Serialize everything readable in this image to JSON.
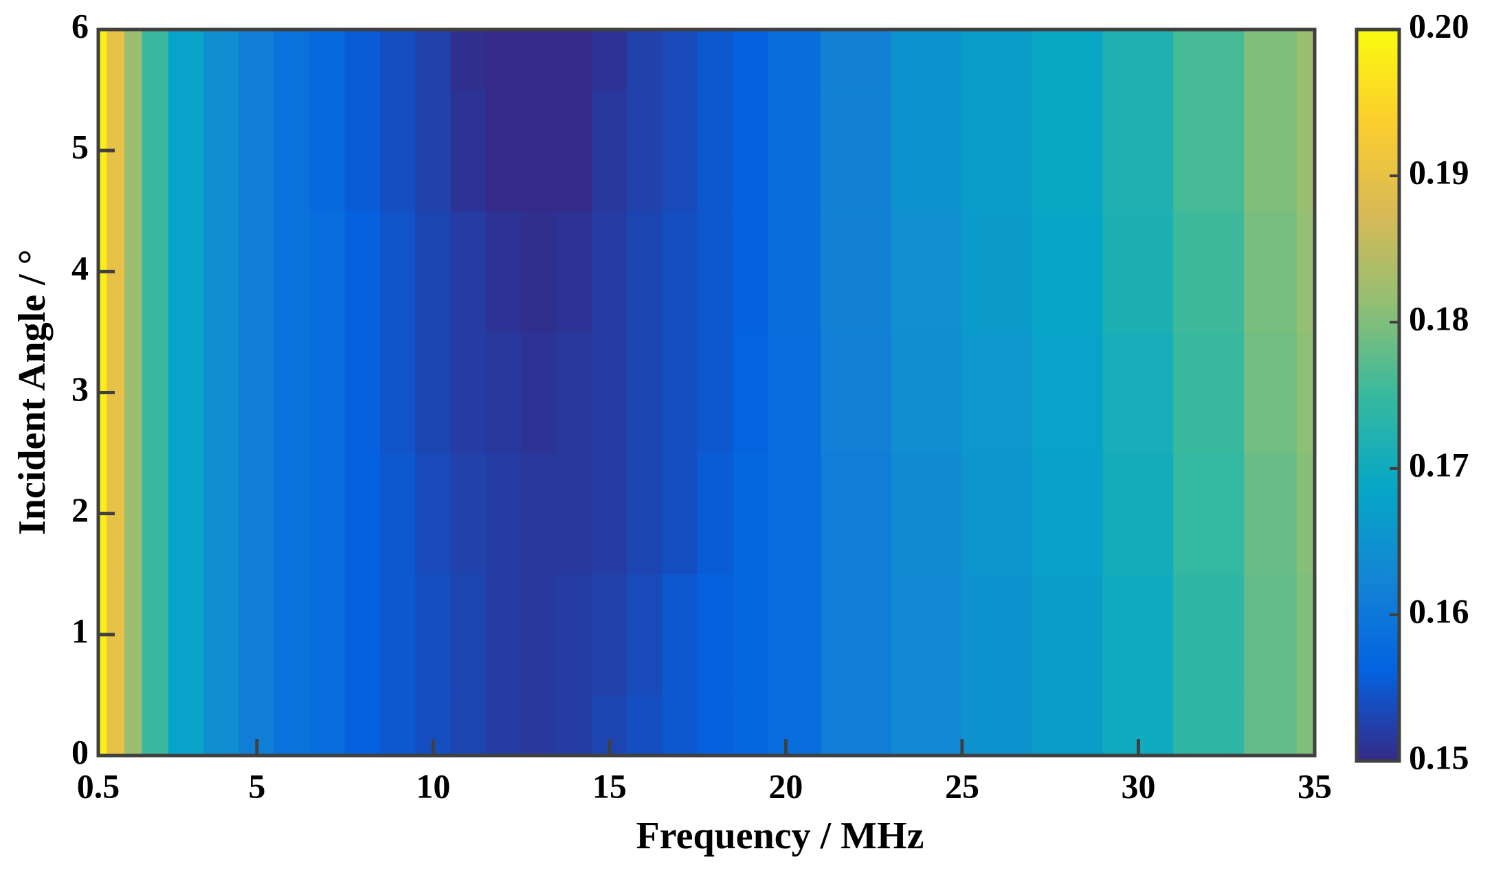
{
  "chart_data": {
    "type": "heatmap",
    "xlabel": "Frequency / MHz",
    "ylabel": "Incident Angle / °",
    "x": [
      0.5,
      1,
      1.5,
      2,
      3,
      4,
      5,
      6,
      7,
      8,
      9,
      10,
      11,
      12,
      13,
      14,
      15,
      16,
      17,
      18,
      19,
      20,
      22,
      24,
      26,
      28,
      30,
      32,
      34,
      35
    ],
    "y": [
      0,
      1,
      2,
      3,
      4,
      5,
      6
    ],
    "z": [
      [
        0.198,
        0.19,
        0.182,
        0.175,
        0.168,
        0.164,
        0.161,
        0.159,
        0.158,
        0.156,
        0.155,
        0.154,
        0.153,
        0.152,
        0.1515,
        0.152,
        0.153,
        0.154,
        0.155,
        0.156,
        0.157,
        0.158,
        0.161,
        0.163,
        0.165,
        0.167,
        0.17,
        0.174,
        0.178,
        0.18
      ],
      [
        0.198,
        0.19,
        0.182,
        0.175,
        0.168,
        0.164,
        0.161,
        0.159,
        0.158,
        0.156,
        0.155,
        0.154,
        0.153,
        0.152,
        0.1515,
        0.152,
        0.1525,
        0.1535,
        0.155,
        0.156,
        0.157,
        0.158,
        0.161,
        0.163,
        0.165,
        0.167,
        0.17,
        0.174,
        0.178,
        0.18
      ],
      [
        0.198,
        0.19,
        0.182,
        0.175,
        0.168,
        0.164,
        0.161,
        0.159,
        0.158,
        0.156,
        0.155,
        0.1535,
        0.1525,
        0.152,
        0.1515,
        0.1515,
        0.152,
        0.153,
        0.154,
        0.1555,
        0.157,
        0.158,
        0.161,
        0.1635,
        0.1655,
        0.1675,
        0.1705,
        0.1745,
        0.1785,
        0.1805
      ],
      [
        0.198,
        0.19,
        0.182,
        0.175,
        0.168,
        0.164,
        0.161,
        0.159,
        0.158,
        0.156,
        0.1545,
        0.153,
        0.152,
        0.1515,
        0.151,
        0.1515,
        0.152,
        0.153,
        0.154,
        0.155,
        0.1565,
        0.158,
        0.1615,
        0.164,
        0.166,
        0.168,
        0.171,
        0.175,
        0.179,
        0.181
      ],
      [
        0.198,
        0.19,
        0.182,
        0.175,
        0.168,
        0.164,
        0.161,
        0.159,
        0.158,
        0.156,
        0.1545,
        0.153,
        0.152,
        0.151,
        0.1505,
        0.151,
        0.152,
        0.153,
        0.154,
        0.155,
        0.156,
        0.1585,
        0.162,
        0.1645,
        0.1665,
        0.1685,
        0.1715,
        0.1755,
        0.1795,
        0.1815
      ],
      [
        0.198,
        0.19,
        0.182,
        0.175,
        0.168,
        0.164,
        0.161,
        0.159,
        0.1575,
        0.1555,
        0.154,
        0.1525,
        0.151,
        0.15,
        0.15,
        0.15,
        0.1515,
        0.1525,
        0.1535,
        0.155,
        0.156,
        0.1585,
        0.162,
        0.165,
        0.167,
        0.169,
        0.172,
        0.176,
        0.18,
        0.182
      ],
      [
        0.198,
        0.19,
        0.182,
        0.175,
        0.168,
        0.164,
        0.161,
        0.159,
        0.1575,
        0.1555,
        0.154,
        0.1525,
        0.1505,
        0.15,
        0.15,
        0.15,
        0.151,
        0.1525,
        0.1535,
        0.155,
        0.156,
        0.1585,
        0.162,
        0.165,
        0.167,
        0.169,
        0.172,
        0.176,
        0.18,
        0.182
      ]
    ],
    "xlim": [
      0.5,
      35
    ],
    "ylim": [
      0,
      6
    ],
    "xticks": [
      0.5,
      5,
      10,
      15,
      20,
      25,
      30,
      35
    ],
    "yticks": [
      0,
      1,
      2,
      3,
      4,
      5,
      6
    ],
    "clim": [
      0.15,
      0.2
    ],
    "cticks": [
      0.15,
      0.16,
      0.17,
      0.18,
      0.19,
      {
        "value": 0.2,
        "label": "0.20"
      }
    ],
    "colormap": [
      "#352a87",
      "#0363e1",
      "#1485d4",
      "#06a7c6",
      "#38b99e",
      "#92bf73",
      "#d9ba56",
      "#fcce2e",
      "#f9fb0e"
    ]
  }
}
